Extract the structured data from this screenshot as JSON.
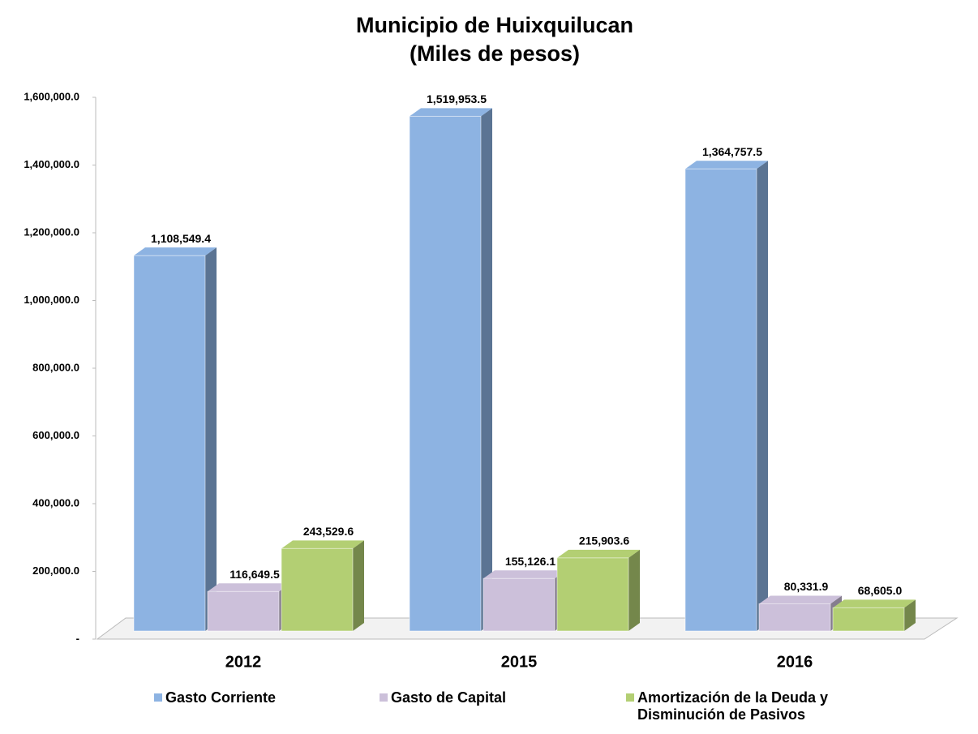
{
  "chart_data": {
    "type": "bar3d",
    "title": "Municipio de Huixquilucan",
    "subtitle": "(Miles de pesos)",
    "categories": [
      "2012",
      "2015",
      "2016"
    ],
    "series": [
      {
        "name": "Gasto Corriente",
        "color": "#8db3e2",
        "values": [
          1108549.4,
          1519953.5,
          1364757.5
        ],
        "value_labels": [
          "1,108,549.4",
          "1,519,953.5",
          "1,364,757.5"
        ]
      },
      {
        "name": "Gasto de Capital",
        "color": "#ccc0da",
        "values": [
          116649.5,
          155126.1,
          80331.9
        ],
        "value_labels": [
          "116,649.5",
          "155,126.1",
          "80,331.9"
        ]
      },
      {
        "name": "Amortización de la Deuda y Disminución de Pasivos",
        "color": "#b3cf73",
        "values": [
          243529.6,
          215903.6,
          68605.0
        ],
        "value_labels": [
          "243,529.6",
          "215,903.6",
          "68,605.0"
        ]
      }
    ],
    "ylim": [
      0,
      1600000
    ],
    "yticks": [
      {
        "value": 0,
        "label": "-"
      },
      {
        "value": 200000,
        "label": "200,000.0"
      },
      {
        "value": 400000,
        "label": "400,000.0"
      },
      {
        "value": 600000,
        "label": "600,000.0"
      },
      {
        "value": 800000,
        "label": "800,000.0"
      },
      {
        "value": 1000000,
        "label": "1,000,000.0"
      },
      {
        "value": 1200000,
        "label": "1,200,000.0"
      },
      {
        "value": 1400000,
        "label": "1,400,000.0"
      },
      {
        "value": 1600000,
        "label": "1,600,000.0"
      }
    ],
    "legend": "bottom"
  }
}
